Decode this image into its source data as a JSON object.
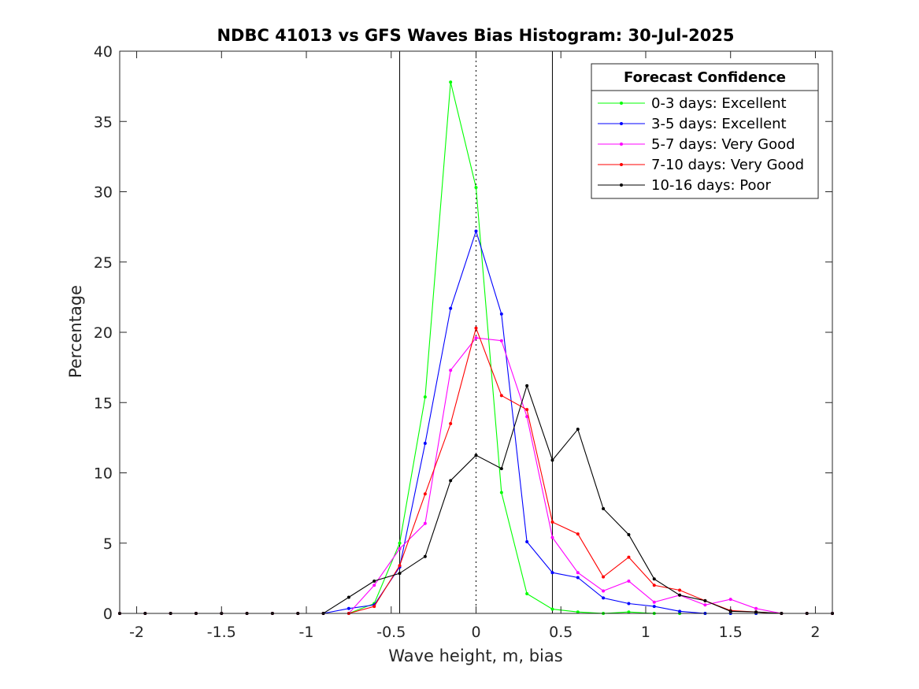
{
  "chart_data": {
    "type": "line",
    "title": "NDBC 41013 vs GFS Waves Bias Histogram: 30-Jul-2025",
    "xlabel": "Wave height, m, bias",
    "ylabel": "Percentage",
    "xlim": [
      -2.1,
      2.1
    ],
    "ylim": [
      0,
      40
    ],
    "x_ticks": [
      -2,
      -1.5,
      -1,
      -0.5,
      0,
      0.5,
      1,
      1.5,
      2
    ],
    "y_ticks": [
      0,
      5,
      10,
      15,
      20,
      25,
      30,
      35,
      40
    ],
    "grid": false,
    "legend_title": "Forecast Confidence",
    "legend_position": "top-right",
    "reference_lines": [
      {
        "x": -0.45,
        "style": "solid"
      },
      {
        "x": 0,
        "style": "dotted"
      },
      {
        "x": 0.45,
        "style": "solid"
      }
    ],
    "x": [
      -2.1,
      -1.95,
      -1.8,
      -1.65,
      -1.5,
      -1.35,
      -1.2,
      -1.05,
      -0.9,
      -0.75,
      -0.6,
      -0.45,
      -0.3,
      -0.15,
      0,
      0.15,
      0.3,
      0.45,
      0.6,
      0.75,
      0.9,
      1.05,
      1.2,
      1.35,
      1.5,
      1.65,
      1.8,
      1.95,
      2.1
    ],
    "series": [
      {
        "name": "0-3 days: Excellent",
        "color": "#00ff00",
        "values": [
          0,
          0,
          0,
          0,
          0,
          0,
          0,
          0,
          0,
          0,
          0.7,
          5.0,
          15.4,
          37.8,
          30.3,
          8.6,
          1.4,
          0.3,
          0.1,
          0,
          0.1,
          0,
          0,
          0,
          0,
          0,
          0,
          0,
          0
        ]
      },
      {
        "name": "3-5 days: Excellent",
        "color": "#0000ff",
        "values": [
          0,
          0,
          0,
          0,
          0,
          0,
          0,
          0,
          0,
          0.35,
          0.6,
          3.3,
          12.1,
          21.7,
          27.2,
          21.3,
          5.1,
          2.9,
          2.55,
          1.1,
          0.7,
          0.5,
          0.15,
          0,
          0,
          0,
          0,
          0,
          0
        ]
      },
      {
        "name": "5-7 days: Very Good",
        "color": "#ff00ff",
        "values": [
          0,
          0,
          0,
          0,
          0,
          0,
          0,
          0,
          0,
          0,
          2.0,
          4.6,
          6.4,
          17.3,
          19.6,
          19.4,
          14.0,
          5.4,
          2.9,
          1.6,
          2.3,
          0.8,
          1.3,
          0.6,
          1.0,
          0.35,
          0,
          0,
          0
        ]
      },
      {
        "name": "7-10 days: Very Good",
        "color": "#ff0000",
        "values": [
          0,
          0,
          0,
          0,
          0,
          0,
          0,
          0,
          0,
          0,
          0.5,
          3.4,
          8.5,
          13.5,
          20.3,
          15.5,
          14.5,
          6.5,
          5.65,
          2.6,
          4.0,
          2.0,
          1.65,
          0.9,
          0.2,
          0.1,
          0,
          0,
          0
        ]
      },
      {
        "name": "10-16 days: Poor",
        "color": "#000000",
        "values": [
          0,
          0,
          0,
          0,
          0,
          0,
          0,
          0,
          0,
          1.15,
          2.3,
          2.85,
          4.05,
          9.45,
          11.25,
          10.3,
          16.2,
          10.9,
          13.1,
          7.45,
          5.6,
          2.45,
          1.3,
          0.9,
          0.15,
          0.1,
          0,
          0,
          0
        ]
      }
    ]
  }
}
